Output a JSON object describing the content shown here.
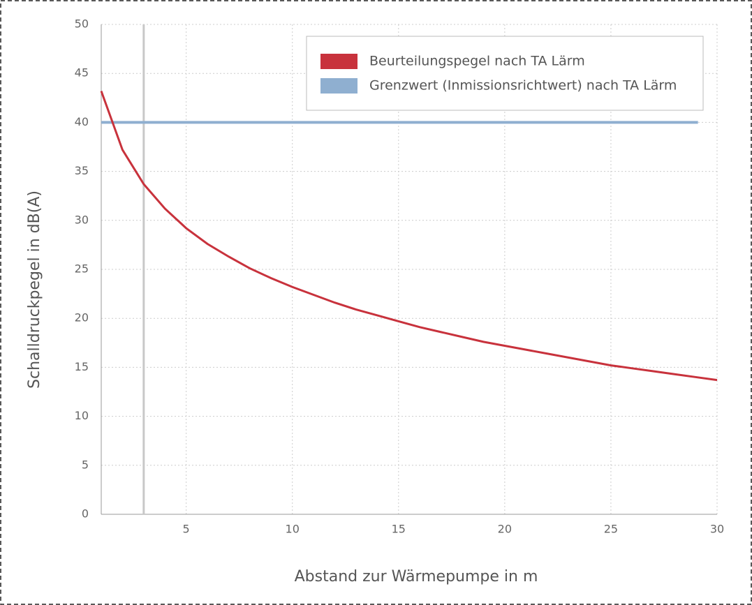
{
  "chart_data": {
    "type": "line",
    "y_label": "Schalldruckpegel in dB(A)",
    "x_label": "Abstand zur Wärmepumpe in m",
    "xlim": [
      1,
      30
    ],
    "xticks": [
      5,
      10,
      15,
      20,
      25,
      30
    ],
    "ylim": [
      0,
      50
    ],
    "yticks": [
      0,
      5,
      10,
      15,
      20,
      25,
      30,
      35,
      40,
      45,
      50
    ],
    "grid": true,
    "legend": "top-right",
    "vline": 3,
    "vline_color": "#c8c8c8",
    "series": [
      {
        "name": "Beurteilungspegel nach TA Lärm",
        "color": "#c8323c",
        "x": [
          1,
          2,
          3,
          4,
          5,
          6,
          7,
          8,
          9,
          10,
          11,
          12,
          13,
          14,
          15,
          16,
          17,
          18,
          19,
          20,
          21,
          22,
          23,
          24,
          25,
          26,
          27,
          28,
          29,
          30
        ],
        "values": [
          43.2,
          37.2,
          33.7,
          31.2,
          29.2,
          27.6,
          26.3,
          25.1,
          24.1,
          23.2,
          22.4,
          21.6,
          20.9,
          20.3,
          19.7,
          19.1,
          18.6,
          18.1,
          17.6,
          17.2,
          16.8,
          16.4,
          16.0,
          15.6,
          15.2,
          14.9,
          14.6,
          14.3,
          14.0,
          13.7
        ]
      },
      {
        "name": "Grenzwert (Inmissionsrichtwert) nach TA Lärm",
        "color": "#8fafd0",
        "x": [
          1,
          29.1
        ],
        "values": [
          40,
          40
        ]
      }
    ]
  }
}
